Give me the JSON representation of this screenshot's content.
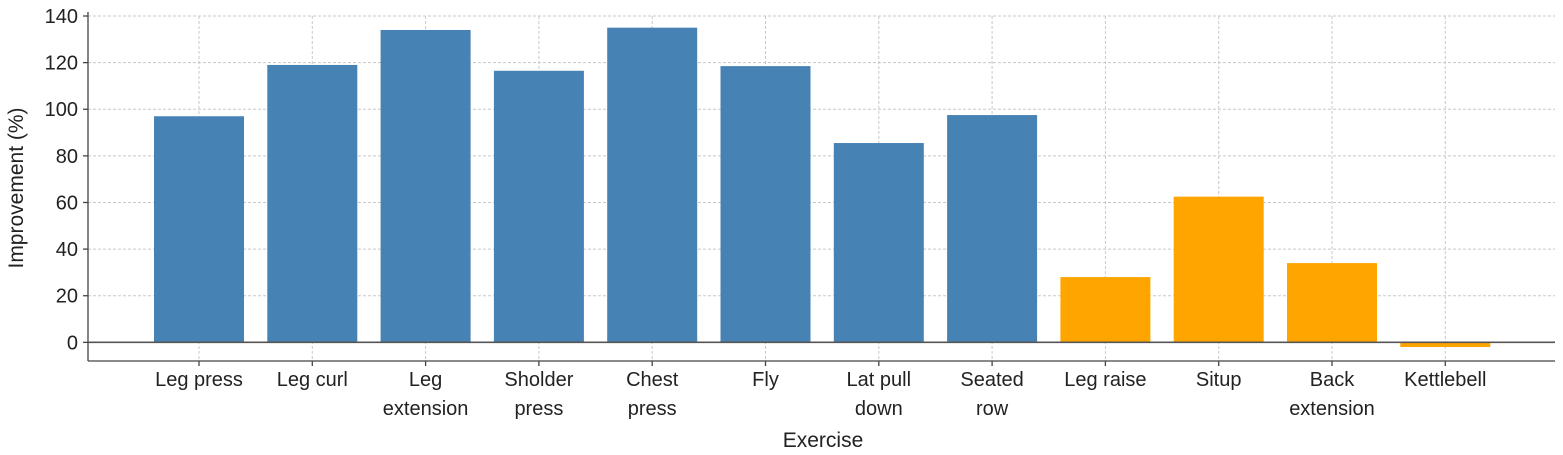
{
  "chart_data": {
    "type": "bar",
    "title": "",
    "xlabel": "Exercise",
    "ylabel": "Improvement (%)",
    "ylim": [
      -8,
      140
    ],
    "yticks": [
      0,
      20,
      40,
      60,
      80,
      100,
      120,
      140
    ],
    "grid": true,
    "categories": [
      [
        "Leg press"
      ],
      [
        "Leg curl"
      ],
      [
        "Leg",
        "extension"
      ],
      [
        "Sholder",
        "press"
      ],
      [
        "Chest",
        "press"
      ],
      [
        "Fly"
      ],
      [
        "Lat pull",
        "down"
      ],
      [
        "Seated",
        "row"
      ],
      [
        "Leg raise"
      ],
      [
        "Situp"
      ],
      [
        "Back",
        "extension"
      ],
      [
        "Kettlebell"
      ]
    ],
    "values": [
      97,
      119,
      134,
      116.5,
      135,
      118.5,
      85.5,
      97.5,
      28,
      62.5,
      34,
      -2
    ],
    "colors": [
      "#4682b4",
      "#4682b4",
      "#4682b4",
      "#4682b4",
      "#4682b4",
      "#4682b4",
      "#4682b4",
      "#4682b4",
      "#ffa500",
      "#ffa500",
      "#ffa500",
      "#ffa500"
    ]
  }
}
